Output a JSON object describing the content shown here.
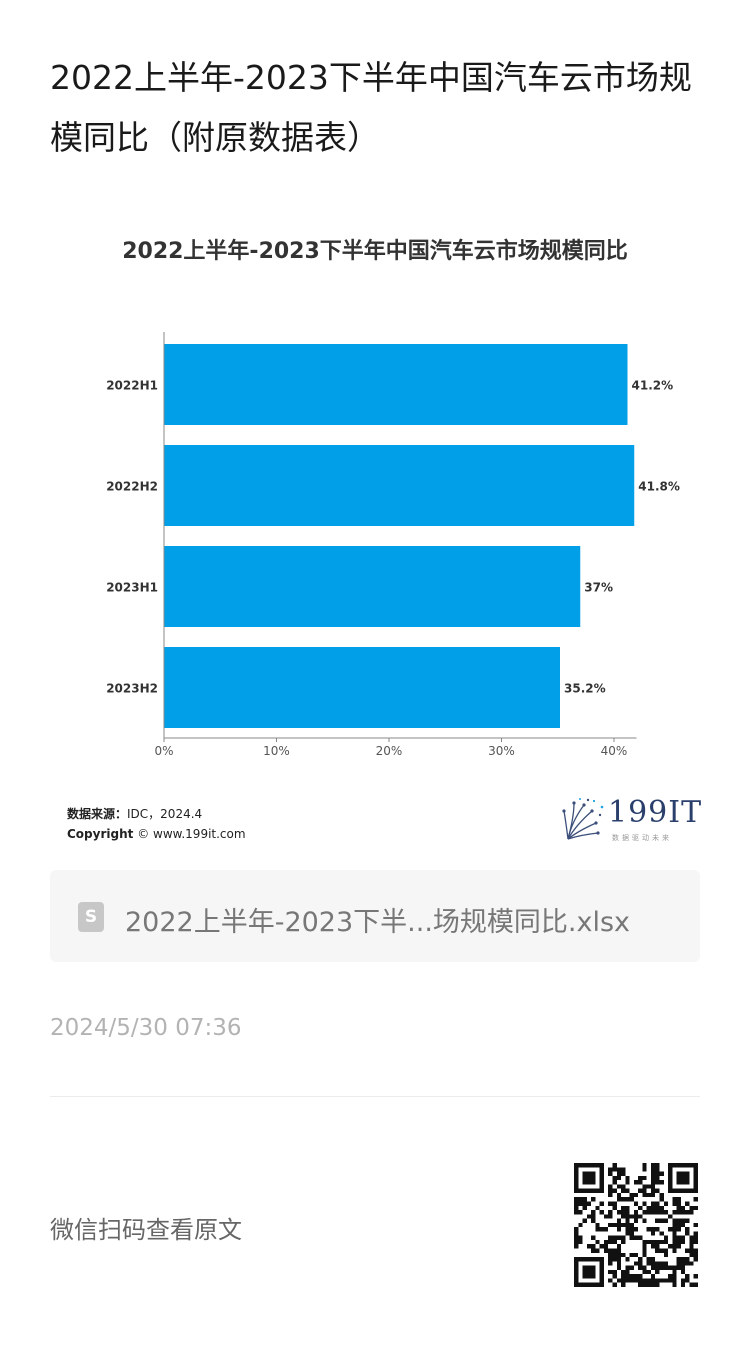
{
  "article": {
    "title": "2022上半年-2023下半年中国汽车云市场规模同比（附原数据表）",
    "date": "2024/5/30 07:36",
    "qr_label": "微信扫码查看原文"
  },
  "attachment": {
    "icon": "spreadsheet-icon",
    "icon_letter": "S",
    "file_name": "2022上半年-2023下半...场规模同比.xlsx"
  },
  "source": {
    "label": "数据来源：",
    "text": "IDC，2024.4",
    "copyright_label": "Copyright",
    "copyright_text": "© www.199it.com"
  },
  "logo": {
    "text": "199IT",
    "subtext": "数据驱动未来"
  },
  "colors": {
    "bar": "#009fe8",
    "axis": "#888888"
  },
  "chart_data": {
    "type": "bar",
    "orientation": "horizontal",
    "title": "2022上半年-2023下半年中国汽车云市场规模同比",
    "categories": [
      "2022H1",
      "2022H2",
      "2023H1",
      "2023H2"
    ],
    "values": [
      41.2,
      41.8,
      37,
      35.2
    ],
    "data_labels": [
      "41.2%",
      "41.8%",
      "37%",
      "35.2%"
    ],
    "xticks": [
      "0%",
      "10%",
      "20%",
      "30%",
      "40%"
    ],
    "xtick_values": [
      0,
      10,
      20,
      30,
      40
    ],
    "xlim": [
      0,
      42
    ],
    "xlabel": "",
    "ylabel": "",
    "grid": false
  }
}
